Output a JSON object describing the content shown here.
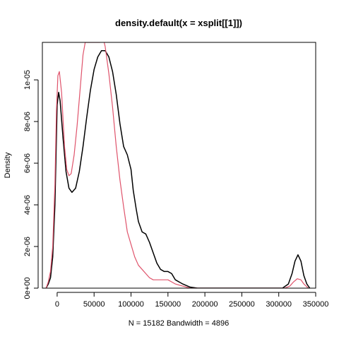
{
  "chart_data": {
    "type": "line",
    "title": "density.default(x = xsplit[[1]])",
    "xlabel": "N = 15182   Bandwidth = 4896",
    "ylabel": "Density",
    "xlim": [
      -20000,
      350000
    ],
    "ylim": [
      0,
      1.18e-05
    ],
    "x_ticks": [
      {
        "value": 0,
        "label": "0"
      },
      {
        "value": 50000,
        "label": "50000"
      },
      {
        "value": 100000,
        "label": "100000"
      },
      {
        "value": 150000,
        "label": "150000"
      },
      {
        "value": 200000,
        "label": "200000"
      },
      {
        "value": 250000,
        "label": "250000"
      },
      {
        "value": 300000,
        "label": "300000"
      },
      {
        "value": 350000,
        "label": "350000"
      }
    ],
    "y_ticks": [
      {
        "value": 0,
        "label": "0e+00"
      },
      {
        "value": 2e-06,
        "label": "2e-06"
      },
      {
        "value": 4e-06,
        "label": "4e-06"
      },
      {
        "value": 6e-06,
        "label": "6e-06"
      },
      {
        "value": 8e-06,
        "label": "8e-06"
      },
      {
        "value": 1e-05,
        "label": "1e-05"
      }
    ],
    "baseline": 0,
    "series": [
      {
        "color": "#000000",
        "points": [
          [
            -15000,
            0
          ],
          [
            -12000,
            2e-07
          ],
          [
            -9000,
            5e-07
          ],
          [
            -6000,
            1.5e-06
          ],
          [
            -3000,
            4e-06
          ],
          [
            0,
            8.8e-06
          ],
          [
            2000,
            9.4e-06
          ],
          [
            4000,
            9e-06
          ],
          [
            8000,
            7.2e-06
          ],
          [
            12000,
            5.6e-06
          ],
          [
            16000,
            4.8e-06
          ],
          [
            20000,
            4.6e-06
          ],
          [
            25000,
            4.8e-06
          ],
          [
            30000,
            5.6e-06
          ],
          [
            35000,
            6.8e-06
          ],
          [
            40000,
            8.2e-06
          ],
          [
            45000,
            9.5e-06
          ],
          [
            50000,
            1.05e-05
          ],
          [
            55000,
            1.11e-05
          ],
          [
            60000,
            1.14e-05
          ],
          [
            65000,
            1.14e-05
          ],
          [
            70000,
            1.11e-05
          ],
          [
            75000,
            1.04e-05
          ],
          [
            80000,
            9.3e-06
          ],
          [
            85000,
            7.9e-06
          ],
          [
            90000,
            6.8e-06
          ],
          [
            95000,
            6.4e-06
          ],
          [
            100000,
            5.7e-06
          ],
          [
            103000,
            4.7e-06
          ],
          [
            107000,
            3.8e-06
          ],
          [
            110000,
            3.2e-06
          ],
          [
            115000,
            2.7e-06
          ],
          [
            120000,
            2.6e-06
          ],
          [
            125000,
            2.2e-06
          ],
          [
            130000,
            1.7e-06
          ],
          [
            135000,
            1.2e-06
          ],
          [
            140000,
            9e-07
          ],
          [
            145000,
            8e-07
          ],
          [
            150000,
            8e-07
          ],
          [
            155000,
            7e-07
          ],
          [
            160000,
            4e-07
          ],
          [
            170000,
            2e-07
          ],
          [
            180000,
            5e-08
          ],
          [
            190000,
            0
          ],
          [
            250000,
            0
          ],
          [
            305000,
            0
          ],
          [
            313000,
            2e-07
          ],
          [
            318000,
            7e-07
          ],
          [
            322000,
            1.3e-06
          ],
          [
            326000,
            1.6e-06
          ],
          [
            330000,
            1.3e-06
          ],
          [
            334000,
            6e-07
          ],
          [
            338000,
            2e-07
          ],
          [
            342000,
            0
          ]
        ]
      },
      {
        "color": "#df536b",
        "points": [
          [
            -15000,
            0
          ],
          [
            -12000,
            3e-07
          ],
          [
            -9000,
            8e-07
          ],
          [
            -6000,
            2e-06
          ],
          [
            -3000,
            5e-06
          ],
          [
            -1000,
            8.5e-06
          ],
          [
            1000,
            1.02e-05
          ],
          [
            3000,
            1.04e-05
          ],
          [
            6000,
            9.4e-06
          ],
          [
            10000,
            6.8e-06
          ],
          [
            13000,
            5.7e-06
          ],
          [
            16000,
            5.4e-06
          ],
          [
            19000,
            5.5e-06
          ],
          [
            23000,
            6.4e-06
          ],
          [
            27000,
            7.8e-06
          ],
          [
            31000,
            9.5e-06
          ],
          [
            35000,
            1.12e-05
          ],
          [
            38000,
            1.18e-05
          ],
          [
            58000,
            1.18e-05
          ],
          [
            61000,
            1.19e-05
          ],
          [
            63000,
            1.19e-05
          ],
          [
            65000,
            1.16e-05
          ],
          [
            70000,
            1.03e-05
          ],
          [
            75000,
            8.7e-06
          ],
          [
            80000,
            6.8e-06
          ],
          [
            85000,
            5.2e-06
          ],
          [
            90000,
            3.9e-06
          ],
          [
            95000,
            2.7e-06
          ],
          [
            100000,
            2.1e-06
          ],
          [
            105000,
            1.5e-06
          ],
          [
            110000,
            1.1e-06
          ],
          [
            115000,
            9e-07
          ],
          [
            120000,
            7e-07
          ],
          [
            125000,
            5e-07
          ],
          [
            130000,
            4e-07
          ],
          [
            140000,
            4e-07
          ],
          [
            150000,
            4e-07
          ],
          [
            155000,
            3e-07
          ],
          [
            160000,
            2e-07
          ],
          [
            170000,
            1e-07
          ],
          [
            180000,
            0
          ],
          [
            250000,
            0
          ],
          [
            308000,
            0
          ],
          [
            315000,
            1e-07
          ],
          [
            320000,
            3e-07
          ],
          [
            325000,
            4.5e-07
          ],
          [
            330000,
            4e-07
          ],
          [
            334000,
            2e-07
          ],
          [
            340000,
            0
          ]
        ]
      }
    ]
  }
}
